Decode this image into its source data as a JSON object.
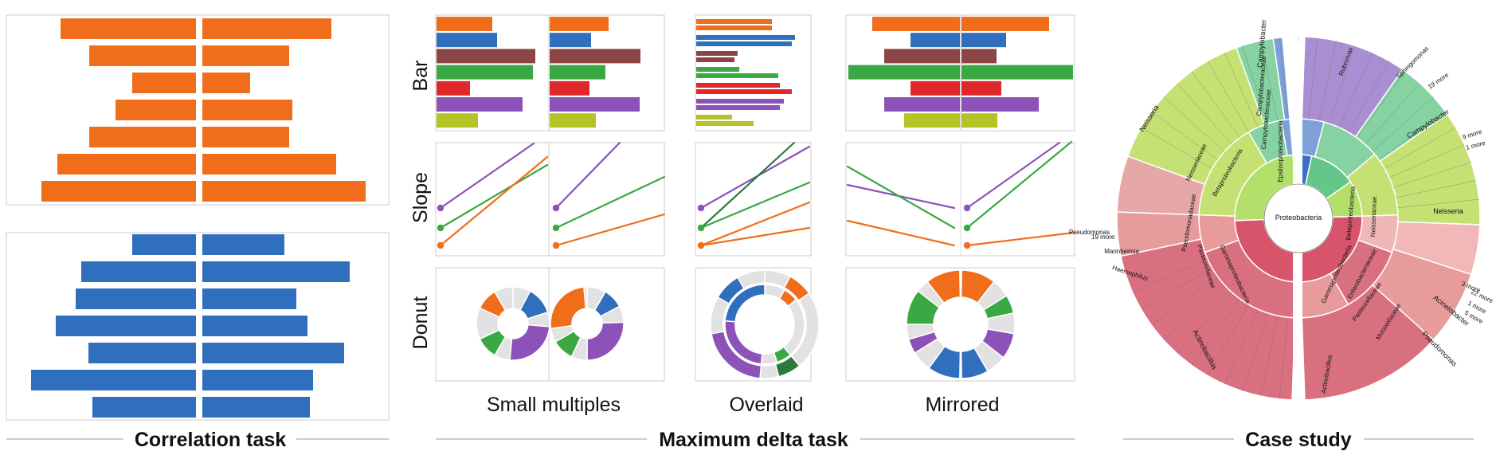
{
  "sections": {
    "correlation": "Correlation task",
    "max_delta": "Maximum delta task",
    "case_study": "Case study"
  },
  "columns": {
    "small_multiples": "Small multiples",
    "overlaid": "Overlaid",
    "mirrored": "Mirrored"
  },
  "rows": {
    "bar": "Bar",
    "slope": "Slope",
    "donut": "Donut"
  },
  "colors": {
    "orange": "#f06d1c",
    "blue": "#2f6fbe",
    "brown": "#8b4545",
    "green": "#3aa843",
    "red": "#e0282a",
    "purple": "#8d52b8",
    "olive": "#b5c424",
    "gray": "#e2e2e2",
    "frame": "#cccccc"
  },
  "sunburst": {
    "center": "Proteobacteria",
    "classes": [
      "Betaproteobacteria",
      "Epsilonproteobacteria",
      "Gammaproteobacteria"
    ],
    "families": [
      "Neisseriaceae",
      "Campylobacteraceae",
      "Pasteurellaceae",
      "Pseudomonadaceae",
      "Enterobacteriaceae",
      "Moraxellaceae"
    ],
    "genera": [
      "Neisseria",
      "Campylobacter",
      "Pseudomonas",
      "Haemophilus",
      "Mannheimia",
      "Acinetobacter",
      "Actinobacillus",
      "Rubrivivax",
      "Sphingomonas"
    ],
    "more": [
      "19 more",
      "9 more",
      "1 more",
      "22 more",
      "3 more",
      "5 more",
      "10 more",
      "4 more"
    ]
  }
}
